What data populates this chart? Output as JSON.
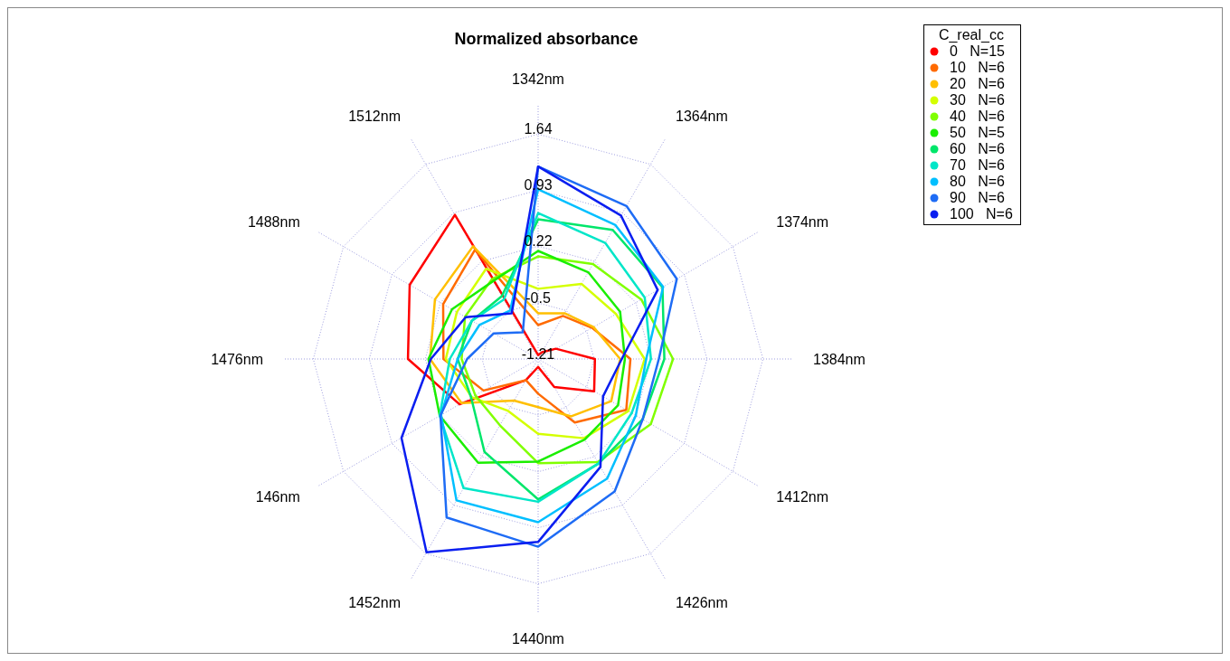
{
  "chart_data": {
    "type": "radar",
    "title": "Normalized absorbance",
    "legend_title": "C_real_cc",
    "legend": "top right",
    "grid": true,
    "categories": [
      "1342nm",
      "1364nm",
      "1374nm",
      "1384nm",
      "1412nm",
      "1426nm",
      "1440nm",
      "1452nm",
      "146nm",
      "1476nm",
      "1488nm",
      "1512nm"
    ],
    "ylim": [
      -1.21,
      1.64
    ],
    "yticks": [
      -1.21,
      -0.5,
      0.22,
      0.93,
      1.64
    ],
    "series": [
      {
        "name": "0   N=15",
        "color": "#ff0000",
        "values": [
          -1.16,
          -1.11,
          -0.95,
          -0.49,
          -0.39,
          -0.8,
          -1.11,
          -0.9,
          -0.06,
          0.44,
          0.67,
          0.9
        ]
      },
      {
        "name": "10   N=6",
        "color": "#ff6a00",
        "values": [
          -0.78,
          -0.58,
          -0.42,
          -0.04,
          0.08,
          -0.28,
          -0.77,
          -0.9,
          -0.41,
          -0.01,
          0.18,
          0.39
        ]
      },
      {
        "name": "20   N=6",
        "color": "#ffbf00",
        "values": [
          -0.63,
          -0.54,
          -0.4,
          -0.17,
          -0.14,
          -0.37,
          -0.6,
          -0.6,
          -0.09,
          0.16,
          0.3,
          0.44
        ]
      },
      {
        "name": "30   N=6",
        "color": "#d4ff00",
        "values": [
          -0.32,
          -0.11,
          -0.07,
          0.14,
          0.11,
          -0.05,
          -0.26,
          -0.45,
          -0.24,
          -0.04,
          -0.02,
          0.11
        ]
      },
      {
        "name": "40   N=6",
        "color": "#80ff00",
        "values": [
          0.09,
          0.18,
          0.3,
          0.5,
          0.44,
          0.3,
          0.11,
          -0.24,
          -0.29,
          -0.24,
          -0.14,
          -0.04
        ]
      },
      {
        "name": "50   N=5",
        "color": "#1aee00",
        "values": [
          0.16,
          0.06,
          -0.01,
          -0.11,
          -0.04,
          -0.03,
          0.09,
          0.31,
          0.23,
          0.18,
          0.05,
          -0.07
        ]
      },
      {
        "name": "60   N=6",
        "color": "#00e66a",
        "values": [
          0.56,
          0.68,
          0.61,
          0.39,
          0.32,
          0.32,
          0.57,
          0.15,
          -0.23,
          -0.19,
          -0.24,
          -0.29
        ]
      },
      {
        "name": "70   N=6",
        "color": "#00e6c8",
        "values": [
          0.64,
          0.49,
          0.35,
          0.22,
          0.16,
          0.32,
          0.6,
          0.68,
          0.23,
          -0.09,
          -0.24,
          -0.34
        ]
      },
      {
        "name": "80   N=6",
        "color": "#00bfff",
        "values": [
          0.94,
          0.75,
          0.62,
          0.16,
          0.22,
          0.54,
          0.86,
          0.86,
          0.21,
          -0.19,
          -0.35,
          -0.5
        ]
      },
      {
        "name": "90   N=6",
        "color": "#1e6cf5",
        "values": [
          1.23,
          1.03,
          0.82,
          0.32,
          0.32,
          0.73,
          1.17,
          1.11,
          0.22,
          -0.31,
          -0.56,
          -0.82
        ]
      },
      {
        "name": "100   N=6",
        "color": "#0a1ef0",
        "values": [
          1.23,
          0.89,
          0.54,
          -0.15,
          -0.26,
          0.37,
          1.11,
          1.62,
          0.79,
          0.15,
          -0.15,
          -0.54
        ]
      }
    ]
  }
}
